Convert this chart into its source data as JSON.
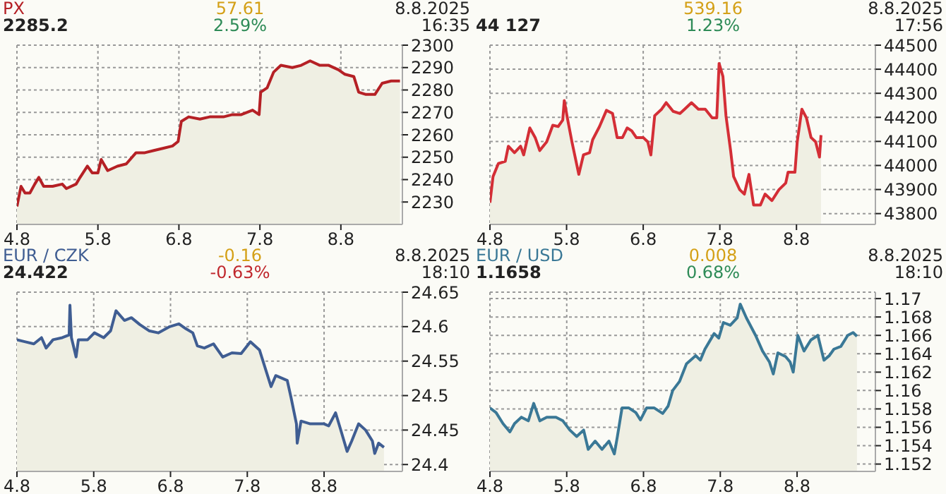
{
  "chart_data": [
    {
      "type": "area",
      "title": "PX",
      "subtitle": "2285.2",
      "annotations": [
        "57.61",
        "2.59%",
        "8.8.2025",
        "16:35"
      ],
      "grid": true,
      "xlim": [
        "2025-08-04T00:00",
        "2025-08-08T18:14"
      ],
      "xticks": [
        {
          "value": "2025-08-04",
          "label": "4.8"
        },
        {
          "value": "2025-08-05",
          "label": "5.8"
        },
        {
          "value": "2025-08-06",
          "label": "6.8"
        },
        {
          "value": "2025-08-07",
          "label": "7.8"
        },
        {
          "value": "2025-08-08",
          "label": "8.8"
        }
      ],
      "ylim": [
        2220,
        2300
      ],
      "yticks": [
        2230,
        2240,
        2250,
        2260,
        2270,
        2280,
        2290,
        2300
      ],
      "series": [
        {
          "color": "#b52025",
          "x": [
            "2025-08-04T00:00",
            "2025-08-04T01:12",
            "2025-08-04T02:24",
            "2025-08-04T03:50",
            "2025-08-04T05:17",
            "2025-08-04T06:29",
            "2025-08-04T07:55",
            "2025-08-04T10:34",
            "2025-08-04T13:26",
            "2025-08-04T14:38",
            "2025-08-04T17:31",
            "2025-08-04T18:43",
            "2025-08-04T20:53",
            "2025-08-04T22:19",
            "2025-08-05T00:00",
            "2025-08-05T00:58",
            "2025-08-05T02:53",
            "2025-08-05T05:46",
            "2025-08-05T08:24",
            "2025-08-05T11:17",
            "2025-08-05T13:55",
            "2025-08-05T16:34",
            "2025-08-05T19:26",
            "2025-08-05T22:05",
            "2025-08-05T23:46",
            "2025-08-06T00:43",
            "2025-08-06T02:53",
            "2025-08-06T06:14",
            "2025-08-06T09:07",
            "2025-08-06T13:12",
            "2025-08-06T15:50",
            "2025-08-06T18:29",
            "2025-08-06T21:50",
            "2025-08-06T23:46",
            "2025-08-07T00:14",
            "2025-08-07T02:10",
            "2025-08-07T04:05",
            "2025-08-07T06:14",
            "2025-08-07T09:36",
            "2025-08-07T12:14",
            "2025-08-07T14:53",
            "2025-08-07T17:46",
            "2025-08-07T20:24",
            "2025-08-07T23:17",
            "2025-08-08T01:12",
            "2025-08-08T03:50",
            "2025-08-08T05:17",
            "2025-08-08T07:26",
            "2025-08-08T10:05",
            "2025-08-08T12:14",
            "2025-08-08T14:53",
            "2025-08-08T17:31"
          ],
          "values": [
            2228,
            2237,
            2234,
            2234,
            2238,
            2241,
            2237,
            2237,
            2238,
            2236,
            2238,
            2241,
            2246,
            2243,
            2243,
            2249,
            2244,
            2246,
            2247,
            2252,
            2252,
            2253,
            2254,
            2255,
            2257,
            2266,
            2268,
            2267,
            2268,
            2268,
            2269,
            2269,
            2271,
            2269,
            2279,
            2281,
            2288,
            2291,
            2290,
            2291,
            2293,
            2291,
            2291,
            2289,
            2287,
            2286,
            2279,
            2278,
            2278,
            2283,
            2284,
            2284
          ]
        }
      ]
    },
    {
      "type": "area",
      "subtitle": "44 127",
      "annotations": [
        "539.16",
        "1.23%",
        "8.8.2025",
        "17:56"
      ],
      "grid": true,
      "xlim": [
        "2025-08-04T00:00",
        "2025-08-09T00:43"
      ],
      "xticks": [
        {
          "value": "2025-08-04",
          "label": "4.8"
        },
        {
          "value": "2025-08-05",
          "label": "5.8"
        },
        {
          "value": "2025-08-06",
          "label": "6.8"
        },
        {
          "value": "2025-08-07",
          "label": "7.8"
        },
        {
          "value": "2025-08-08",
          "label": "8.8"
        }
      ],
      "ylim": [
        43755,
        44500
      ],
      "yticks": [
        43800,
        43900,
        44000,
        44100,
        44200,
        44300,
        44400,
        44500
      ],
      "series": [
        {
          "color": "#d42e36",
          "x": [
            "2025-08-04T00:00",
            "2025-08-04T00:58",
            "2025-08-04T02:38",
            "2025-08-04T04:48",
            "2025-08-04T05:46",
            "2025-08-04T07:41",
            "2025-08-04T09:36",
            "2025-08-04T10:34",
            "2025-08-04T12:29",
            "2025-08-04T14:10",
            "2025-08-04T15:36",
            "2025-08-04T17:46",
            "2025-08-04T19:41",
            "2025-08-04T21:22",
            "2025-08-04T22:48",
            "2025-08-04T23:17",
            "2025-08-05T00:14",
            "2025-08-05T01:41",
            "2025-08-05T03:50",
            "2025-08-05T05:17",
            "2025-08-05T07:12",
            "2025-08-05T08:10",
            "2025-08-05T10:19",
            "2025-08-05T12:29",
            "2025-08-05T14:24",
            "2025-08-05T15:50",
            "2025-08-05T17:31",
            "2025-08-05T18:58",
            "2025-08-05T20:24",
            "2025-08-05T21:50",
            "2025-08-06T00:00",
            "2025-08-06T01:26",
            "2025-08-06T02:24",
            "2025-08-06T03:36",
            "2025-08-06T05:46",
            "2025-08-06T07:12",
            "2025-08-06T09:22",
            "2025-08-06T11:31",
            "2025-08-06T12:58",
            "2025-08-06T15:07",
            "2025-08-06T17:17",
            "2025-08-06T19:26",
            "2025-08-06T21:36",
            "2025-08-06T23:02",
            "2025-08-06T23:46",
            "2025-08-07T00:58",
            "2025-08-07T01:55",
            "2025-08-07T03:22",
            "2025-08-07T04:19",
            "2025-08-07T06:14",
            "2025-08-07T07:41",
            "2025-08-07T09:07",
            "2025-08-07T10:34",
            "2025-08-07T12:43",
            "2025-08-07T14:10",
            "2025-08-07T16:19",
            "2025-08-07T18:29",
            "2025-08-07T20:38",
            "2025-08-07T21:22",
            "2025-08-07T23:31",
            "2025-08-08T00:14",
            "2025-08-08T01:41",
            "2025-08-08T03:07",
            "2025-08-08T04:34",
            "2025-08-08T06:00",
            "2025-08-08T07:12",
            "2025-08-08T07:41"
          ],
          "values": [
            43845,
            43954,
            44008,
            44017,
            44080,
            44053,
            44080,
            44044,
            44156,
            44116,
            44062,
            44098,
            44167,
            44162,
            44189,
            44270,
            44198,
            44098,
            43963,
            44044,
            44053,
            44107,
            44162,
            44229,
            44216,
            44116,
            44116,
            44156,
            44144,
            44116,
            44116,
            44098,
            44044,
            44207,
            44234,
            44261,
            44225,
            44216,
            44234,
            44261,
            44234,
            44234,
            44198,
            44198,
            44424,
            44370,
            44207,
            44062,
            43954,
            43899,
            43881,
            43963,
            43836,
            43836,
            43881,
            43854,
            43899,
            43927,
            43972,
            43972,
            44098,
            44234,
            44198,
            44116,
            44098,
            44035,
            44126
          ]
        }
      ]
    },
    {
      "type": "area",
      "title": "EUR / CZK",
      "subtitle": "24.422",
      "annotations": [
        "-0.16",
        "-0.63%",
        "8.8.2025",
        "18:10"
      ],
      "grid": true,
      "xlim": [
        "2025-08-04T00:00",
        "2025-08-09T00:29"
      ],
      "xticks": [
        {
          "value": "2025-08-04",
          "label": "4.8"
        },
        {
          "value": "2025-08-05",
          "label": "5.8"
        },
        {
          "value": "2025-08-06",
          "label": "6.8"
        },
        {
          "value": "2025-08-07",
          "label": "7.8"
        },
        {
          "value": "2025-08-08",
          "label": "8.8"
        }
      ],
      "ylim": [
        24.39,
        24.65
      ],
      "yticks": [
        24.4,
        24.45,
        24.5,
        24.55,
        24.6,
        24.65
      ],
      "series": [
        {
          "color": "#3f5d92",
          "x": [
            "2025-08-04T00:00",
            "2025-08-04T02:38",
            "2025-08-04T05:17",
            "2025-08-04T07:41",
            "2025-08-04T09:07",
            "2025-08-04T11:17",
            "2025-08-04T14:10",
            "2025-08-04T16:19",
            "2025-08-04T16:34",
            "2025-08-04T17:02",
            "2025-08-04T18:29",
            "2025-08-04T19:12",
            "2025-08-04T22:05",
            "2025-08-05T00:14",
            "2025-08-05T03:07",
            "2025-08-05T05:17",
            "2025-08-05T06:58",
            "2025-08-05T09:36",
            "2025-08-05T11:46",
            "2025-08-05T14:24",
            "2025-08-05T17:17",
            "2025-08-05T20:10",
            "2025-08-05T23:46",
            "2025-08-06T02:38",
            "2025-08-06T04:48",
            "2025-08-06T06:58",
            "2025-08-06T08:24",
            "2025-08-06T10:34",
            "2025-08-06T13:26",
            "2025-08-06T16:19",
            "2025-08-06T19:12",
            "2025-08-06T22:05",
            "2025-08-07T00:58",
            "2025-08-07T03:50",
            "2025-08-07T06:00",
            "2025-08-07T07:26",
            "2025-08-07T08:53",
            "2025-08-07T12:29",
            "2025-08-07T13:41",
            "2025-08-07T15:22",
            "2025-08-07T15:36",
            "2025-08-07T16:48",
            "2025-08-07T19:41",
            "2025-08-08T00:00",
            "2025-08-08T01:26",
            "2025-08-08T03:36",
            "2025-08-08T05:02",
            "2025-08-08T07:12",
            "2025-08-08T08:38",
            "2025-08-08T10:48",
            "2025-08-08T12:58",
            "2025-08-08T15:07",
            "2025-08-08T15:50",
            "2025-08-08T17:02",
            "2025-08-08T18:43"
          ],
          "values": [
            24.581,
            24.578,
            24.575,
            24.584,
            24.569,
            24.581,
            24.584,
            24.588,
            24.631,
            24.584,
            24.556,
            24.581,
            24.581,
            24.591,
            24.584,
            24.594,
            24.623,
            24.609,
            24.613,
            24.603,
            24.594,
            24.591,
            24.6,
            24.604,
            24.597,
            24.591,
            24.572,
            24.569,
            24.575,
            24.556,
            24.562,
            24.561,
            24.578,
            24.566,
            24.534,
            24.513,
            24.529,
            24.522,
            24.497,
            24.459,
            24.431,
            24.463,
            24.459,
            24.459,
            24.456,
            24.475,
            24.453,
            24.419,
            24.434,
            24.459,
            24.45,
            24.434,
            24.416,
            24.431,
            24.425
          ]
        }
      ]
    },
    {
      "type": "area",
      "title": "EUR / USD",
      "subtitle": "1.1658",
      "annotations": [
        "0.008",
        "0.68%",
        "8.8.2025",
        "18:10"
      ],
      "grid": true,
      "xlim": [
        "2025-08-04T00:00",
        "2025-08-09T00:29"
      ],
      "xticks": [
        {
          "value": "2025-08-04",
          "label": "4.8"
        },
        {
          "value": "2025-08-05",
          "label": "5.8"
        },
        {
          "value": "2025-08-06",
          "label": "6.8"
        },
        {
          "value": "2025-08-07",
          "label": "7.8"
        },
        {
          "value": "2025-08-08",
          "label": "8.8"
        }
      ],
      "ylim": [
        1.1512,
        1.1707
      ],
      "yticks": [
        1.152,
        1.154,
        1.156,
        1.158,
        1.16,
        1.162,
        1.164,
        1.166,
        1.168,
        1.17
      ],
      "series": [
        {
          "color": "#3a7896",
          "x": [
            "2025-08-04T00:00",
            "2025-08-04T01:55",
            "2025-08-04T04:05",
            "2025-08-04T06:14",
            "2025-08-04T07:41",
            "2025-08-04T09:50",
            "2025-08-04T12:00",
            "2025-08-04T13:41",
            "2025-08-04T15:36",
            "2025-08-04T17:46",
            "2025-08-04T20:38",
            "2025-08-04T22:48",
            "2025-08-05T00:58",
            "2025-08-05T03:07",
            "2025-08-05T05:17",
            "2025-08-05T06:43",
            "2025-08-05T08:53",
            "2025-08-05T11:02",
            "2025-08-05T13:12",
            "2025-08-05T14:53",
            "2025-08-05T15:50",
            "2025-08-05T17:17",
            "2025-08-05T19:26",
            "2025-08-05T21:36",
            "2025-08-05T23:02",
            "2025-08-06T00:58",
            "2025-08-06T03:22",
            "2025-08-06T06:00",
            "2025-08-06T07:41",
            "2025-08-06T09:07",
            "2025-08-06T11:17",
            "2025-08-06T13:26",
            "2025-08-06T16:19",
            "2025-08-06T17:46",
            "2025-08-06T19:12",
            "2025-08-06T22:05",
            "2025-08-06T23:31",
            "2025-08-07T00:58",
            "2025-08-07T03:07",
            "2025-08-07T05:17",
            "2025-08-07T06:14",
            "2025-08-07T08:10",
            "2025-08-07T11:02",
            "2025-08-07T13:12",
            "2025-08-07T15:22",
            "2025-08-07T16:34",
            "2025-08-07T18:00",
            "2025-08-07T20:24",
            "2025-08-07T21:50",
            "2025-08-07T22:48",
            "2025-08-08T00:14",
            "2025-08-08T02:10",
            "2025-08-08T04:19",
            "2025-08-08T06:29",
            "2025-08-08T08:24",
            "2025-08-08T10:05",
            "2025-08-08T11:31",
            "2025-08-08T13:41",
            "2025-08-08T15:50",
            "2025-08-08T17:31",
            "2025-08-08T18:43"
          ],
          "values": [
            1.1581,
            1.1576,
            1.1564,
            1.1555,
            1.1564,
            1.1571,
            1.1567,
            1.1586,
            1.1567,
            1.1571,
            1.1571,
            1.1567,
            1.1557,
            1.155,
            1.1557,
            1.1536,
            1.1545,
            1.1536,
            1.1545,
            1.1531,
            1.155,
            1.1581,
            1.1581,
            1.1576,
            1.1568,
            1.1581,
            1.1581,
            1.1575,
            1.1583,
            1.16,
            1.161,
            1.1629,
            1.1638,
            1.1633,
            1.1645,
            1.1662,
            1.1657,
            1.1674,
            1.1671,
            1.1679,
            1.1694,
            1.1679,
            1.166,
            1.1643,
            1.1631,
            1.1618,
            1.1641,
            1.1637,
            1.1631,
            1.162,
            1.166,
            1.1643,
            1.1655,
            1.166,
            1.1633,
            1.1638,
            1.1645,
            1.1648,
            1.166,
            1.1663,
            1.1659
          ]
        }
      ]
    }
  ]
}
